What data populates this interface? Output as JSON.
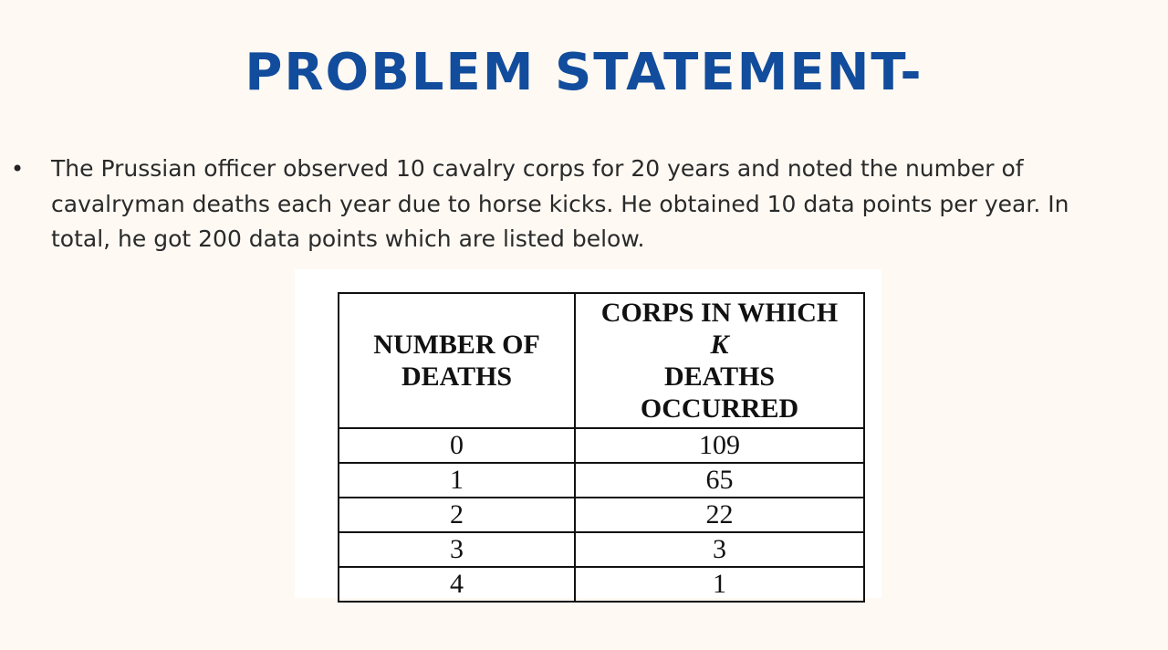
{
  "title": "PROBLEM STATEMENT-",
  "bullet": {
    "marker": "•",
    "text": "The Prussian officer observed 10 cavalry corps for 20 years and noted the number of cavalryman deaths each year due to horse kicks. He obtained 10 data points per year. In total, he got 200 data points which are listed below."
  },
  "table": {
    "headers": {
      "col1_line1": "NUMBER OF",
      "col1_line2": "DEATHS",
      "col2_line1": "CORPS IN WHICH",
      "col2_line2": "K",
      "col2_line3": "DEATHS",
      "col2_line4": "OCCURRED"
    },
    "rows": [
      [
        "0",
        "109"
      ],
      [
        "1",
        "65"
      ],
      [
        "2",
        "22"
      ],
      [
        "3",
        "3"
      ],
      [
        "4",
        "1"
      ]
    ]
  },
  "colors": {
    "background": "#fef9f3",
    "title": "#124c9c",
    "text": "#2a2a2a"
  }
}
